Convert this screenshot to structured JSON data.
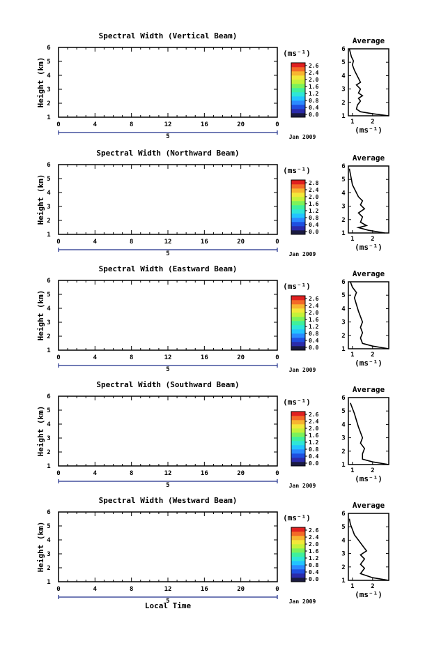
{
  "chart_data": [
    {
      "type": "heatmap",
      "title": "Spectral Width (Vertical Beam)",
      "ylabel": "Height (km)",
      "x_ticks": [
        "0",
        "4",
        "8",
        "12",
        "16",
        "20",
        "0"
      ],
      "y_ticks": [
        "1",
        "2",
        "3",
        "4",
        "5",
        "6"
      ],
      "xlim": [
        0,
        24
      ],
      "ylim": [
        1,
        6
      ],
      "colorbar": {
        "unit": "(ms⁻¹)",
        "ticks": [
          "2.6",
          "2.4",
          "2.0",
          "1.6",
          "1.2",
          "0.8",
          "0.4",
          "0.0"
        ],
        "range": [
          0.0,
          2.8
        ]
      },
      "date": {
        "day_label": "5",
        "month_label": "Jan 2009"
      },
      "average": {
        "title": "Average",
        "xlabel": "(ms⁻¹)",
        "x_ticks": [
          "1",
          "2"
        ],
        "y_ticks": [
          "1",
          "2",
          "3",
          "4",
          "5",
          "6"
        ],
        "xlim": [
          0.8,
          2.8
        ],
        "ylim": [
          1,
          6
        ],
        "profile": [
          [
            2.8,
            1.0
          ],
          [
            2.0,
            1.15
          ],
          [
            1.4,
            1.3
          ],
          [
            1.2,
            1.5
          ],
          [
            1.25,
            1.8
          ],
          [
            1.4,
            2.1
          ],
          [
            1.3,
            2.3
          ],
          [
            1.5,
            2.5
          ],
          [
            1.3,
            2.7
          ],
          [
            1.4,
            3.0
          ],
          [
            1.2,
            3.3
          ],
          [
            1.4,
            3.5
          ],
          [
            1.3,
            3.8
          ],
          [
            1.2,
            4.1
          ],
          [
            1.1,
            4.4
          ],
          [
            1.0,
            4.8
          ],
          [
            1.05,
            5.1
          ],
          [
            0.95,
            5.4
          ],
          [
            0.9,
            5.7
          ],
          [
            0.85,
            6.0
          ]
        ]
      }
    },
    {
      "type": "heatmap",
      "title": "Spectral Width (Northward Beam)",
      "ylabel": "Height (km)",
      "x_ticks": [
        "0",
        "4",
        "8",
        "12",
        "16",
        "20",
        "0"
      ],
      "y_ticks": [
        "1",
        "2",
        "3",
        "4",
        "5",
        "6"
      ],
      "xlim": [
        0,
        24
      ],
      "ylim": [
        1,
        6
      ],
      "colorbar": {
        "unit": "(ms⁻¹)",
        "ticks": [
          "2.8",
          "2.4",
          "2.0",
          "1.6",
          "1.2",
          "0.8",
          "0.4",
          "0.0"
        ],
        "range": [
          0.0,
          2.8
        ]
      },
      "date": {
        "day_label": "5",
        "month_label": "Jan 2009"
      },
      "average": {
        "title": "Average",
        "xlabel": "(ms⁻¹)",
        "x_ticks": [
          "1",
          "2"
        ],
        "y_ticks": [
          "1",
          "2",
          "3",
          "4",
          "5",
          "6"
        ],
        "xlim": [
          0.8,
          2.8
        ],
        "ylim": [
          1,
          6
        ],
        "profile": [
          [
            2.6,
            1.0
          ],
          [
            1.8,
            1.2
          ],
          [
            1.3,
            1.4
          ],
          [
            1.7,
            1.55
          ],
          [
            1.4,
            1.8
          ],
          [
            1.5,
            2.2
          ],
          [
            1.3,
            2.5
          ],
          [
            1.6,
            2.8
          ],
          [
            1.4,
            3.1
          ],
          [
            1.5,
            3.4
          ],
          [
            1.3,
            3.7
          ],
          [
            1.2,
            4.0
          ],
          [
            1.1,
            4.3
          ],
          [
            1.0,
            4.6
          ],
          [
            0.95,
            5.0
          ],
          [
            0.9,
            5.4
          ],
          [
            0.85,
            5.8
          ]
        ]
      }
    },
    {
      "type": "heatmap",
      "title": "Spectral Width (Eastward Beam)",
      "ylabel": "Height (km)",
      "x_ticks": [
        "0",
        "4",
        "8",
        "12",
        "16",
        "20",
        "0"
      ],
      "y_ticks": [
        "1",
        "2",
        "3",
        "4",
        "5",
        "6"
      ],
      "xlim": [
        0,
        24
      ],
      "ylim": [
        1,
        6
      ],
      "colorbar": {
        "unit": "(ms⁻¹)",
        "ticks": [
          "2.6",
          "2.4",
          "2.0",
          "1.6",
          "1.2",
          "0.8",
          "0.4",
          "0.0"
        ],
        "range": [
          0.0,
          2.8
        ]
      },
      "date": {
        "day_label": "5",
        "month_label": "Jan 2009"
      },
      "average": {
        "title": "Average",
        "xlabel": "(ms⁻¹)",
        "x_ticks": [
          "1",
          "2"
        ],
        "y_ticks": [
          "1",
          "2",
          "3",
          "4",
          "5",
          "6"
        ],
        "xlim": [
          0.8,
          2.8
        ],
        "ylim": [
          1,
          6
        ],
        "profile": [
          [
            2.8,
            1.0
          ],
          [
            2.0,
            1.2
          ],
          [
            1.5,
            1.4
          ],
          [
            1.4,
            1.8
          ],
          [
            1.5,
            2.2
          ],
          [
            1.4,
            2.6
          ],
          [
            1.5,
            3.0
          ],
          [
            1.4,
            3.4
          ],
          [
            1.3,
            3.8
          ],
          [
            1.2,
            4.3
          ],
          [
            1.1,
            4.8
          ],
          [
            1.2,
            5.2
          ],
          [
            1.0,
            5.6
          ],
          [
            0.9,
            6.0
          ]
        ]
      }
    },
    {
      "type": "heatmap",
      "title": "Spectral Width (Southward Beam)",
      "ylabel": "Height (km)",
      "x_ticks": [
        "0",
        "4",
        "8",
        "12",
        "16",
        "20",
        "0"
      ],
      "y_ticks": [
        "1",
        "2",
        "3",
        "4",
        "5",
        "6"
      ],
      "xlim": [
        0,
        24
      ],
      "ylim": [
        1,
        6
      ],
      "colorbar": {
        "unit": "(ms⁻¹)",
        "ticks": [
          "2.6",
          "2.4",
          "2.0",
          "1.6",
          "1.2",
          "0.8",
          "0.4",
          "0.0"
        ],
        "range": [
          0.0,
          2.8
        ]
      },
      "date": {
        "day_label": "5",
        "month_label": "Jan 2009"
      },
      "average": {
        "title": "Average",
        "xlabel": "(ms⁻¹)",
        "x_ticks": [
          "1",
          "2"
        ],
        "y_ticks": [
          "1",
          "2",
          "3",
          "4",
          "5",
          "6"
        ],
        "xlim": [
          0.8,
          2.8
        ],
        "ylim": [
          1,
          6
        ],
        "profile": [
          [
            2.8,
            1.0
          ],
          [
            2.0,
            1.2
          ],
          [
            1.5,
            1.4
          ],
          [
            1.5,
            1.8
          ],
          [
            1.6,
            2.2
          ],
          [
            1.4,
            2.6
          ],
          [
            1.5,
            3.0
          ],
          [
            1.4,
            3.4
          ],
          [
            1.3,
            3.8
          ],
          [
            1.2,
            4.3
          ],
          [
            1.1,
            4.8
          ],
          [
            1.0,
            5.2
          ],
          [
            0.9,
            5.6
          ]
        ]
      }
    },
    {
      "type": "heatmap",
      "title": "Spectral Width (Westward Beam)",
      "ylabel": "Height (km)",
      "xlabel": "Local Time",
      "x_ticks": [
        "0",
        "4",
        "8",
        "12",
        "16",
        "20",
        "0"
      ],
      "y_ticks": [
        "1",
        "2",
        "3",
        "4",
        "5",
        "6"
      ],
      "xlim": [
        0,
        24
      ],
      "ylim": [
        1,
        6
      ],
      "colorbar": {
        "unit": "(ms⁻¹)",
        "ticks": [
          "2.6",
          "2.4",
          "2.0",
          "1.6",
          "1.2",
          "0.8",
          "0.4",
          "0.0"
        ],
        "range": [
          0.0,
          2.8
        ]
      },
      "date": {
        "day_label": "5",
        "month_label": "Jan 2009"
      },
      "average": {
        "title": "Average",
        "xlabel": "(ms⁻¹)",
        "x_ticks": [
          "1",
          "2"
        ],
        "y_ticks": [
          "1",
          "2",
          "3",
          "4",
          "5",
          "6"
        ],
        "xlim": [
          0.8,
          2.8
        ],
        "ylim": [
          1,
          6
        ],
        "profile": [
          [
            2.8,
            1.0
          ],
          [
            2.0,
            1.2
          ],
          [
            1.4,
            1.5
          ],
          [
            1.6,
            1.9
          ],
          [
            1.4,
            2.2
          ],
          [
            1.6,
            2.6
          ],
          [
            1.4,
            2.9
          ],
          [
            1.7,
            3.2
          ],
          [
            1.5,
            3.6
          ],
          [
            1.3,
            4.0
          ],
          [
            1.1,
            4.4
          ],
          [
            1.0,
            4.8
          ],
          [
            0.9,
            5.2
          ],
          [
            0.85,
            5.6
          ]
        ]
      }
    }
  ]
}
